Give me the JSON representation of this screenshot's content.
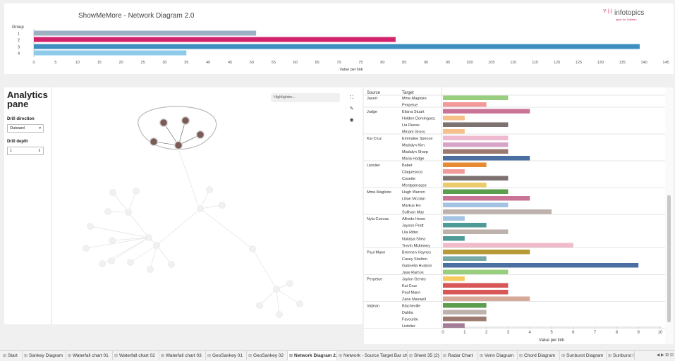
{
  "title": "ShowMeMore - Network Diagram 2.0",
  "logo": {
    "name": "infotopics",
    "tagline": "apps for Tableau",
    "mark": "Y·|·|"
  },
  "top_chart": {
    "chart_data": {
      "type": "bar",
      "orientation": "horizontal",
      "legend_title": "Group",
      "categories": [
        "1",
        "2",
        "3",
        "4"
      ],
      "values": [
        51,
        83,
        139,
        35
      ],
      "colors": [
        "#9dafc3",
        "#d3226c",
        "#3d8fc0",
        "#8ecbea"
      ],
      "xlabel": "Value per link",
      "xlim": [
        0,
        145
      ],
      "xticks": [
        0,
        5,
        10,
        15,
        20,
        25,
        30,
        35,
        40,
        45,
        50,
        55,
        60,
        65,
        70,
        75,
        80,
        85,
        90,
        95,
        100,
        105,
        110,
        115,
        120,
        125,
        130,
        135,
        140,
        145
      ]
    }
  },
  "analytics": {
    "title": "Analytics pane",
    "drill_direction_label": "Drill direction",
    "drill_direction_value": "Outward",
    "drill_depth_label": "Drill depth",
    "drill_depth_value": "1"
  },
  "network": {
    "highlighter_placeholder": "Highlighter...",
    "tools": [
      "fit-screen-icon",
      "pin-icon",
      "eye-icon"
    ]
  },
  "source_target_chart": {
    "chart_data": {
      "type": "bar",
      "orientation": "horizontal",
      "column_headers": [
        "Source",
        "Target"
      ],
      "xlabel": "Value per link",
      "xlim": [
        0,
        10
      ],
      "xticks": [
        0,
        1,
        2,
        3,
        4,
        5,
        6,
        7,
        8,
        9,
        10
      ],
      "groups": [
        {
          "source": "Javert",
          "rows": [
            {
              "target": "Mme.Magloire",
              "value": 3,
              "color": "#98cf7e"
            },
            {
              "target": "Perpetue",
              "value": 2,
              "color": "#f29a9a"
            }
          ]
        },
        {
          "source": "Judge",
          "rows": [
            {
              "target": "Eliana Stuart",
              "value": 4,
              "color": "#c97396"
            },
            {
              "target": "Holden Dominguez",
              "value": 1,
              "color": "#f7c08a"
            },
            {
              "target": "Lia Reese",
              "value": 3,
              "color": "#7d7270"
            },
            {
              "target": "Miriam Gross",
              "value": 1,
              "color": "#f7c08a"
            }
          ]
        },
        {
          "source": "Kai Cruz",
          "rows": [
            {
              "target": "Emmalee Spence",
              "value": 3,
              "color": "#efb9cf"
            },
            {
              "target": "Madalyn Kim",
              "value": 3,
              "color": "#d8a3c8"
            },
            {
              "target": "Madalyn Sharp",
              "value": 3,
              "color": "#9c7a6f"
            },
            {
              "target": "Maria Hodge",
              "value": 4,
              "color": "#4c6fa1"
            }
          ]
        },
        {
          "source": "Listolier",
          "rows": [
            {
              "target": "Babet",
              "value": 2,
              "color": "#e78b32"
            },
            {
              "target": "Claquesous",
              "value": 1,
              "color": "#f29a9a"
            },
            {
              "target": "Cosette",
              "value": 3,
              "color": "#7d7270"
            },
            {
              "target": "Montparnasse",
              "value": 2,
              "color": "#eccb6a"
            }
          ]
        },
        {
          "source": "Mme.Magloire",
          "rows": [
            {
              "target": "Hugh Warren",
              "value": 3,
              "color": "#5a9e4e"
            },
            {
              "target": "Lilian Mcclain",
              "value": 4,
              "color": "#c97396"
            },
            {
              "target": "Markus Ho",
              "value": 3,
              "color": "#a4c3e2"
            },
            {
              "target": "Sullivan May",
              "value": 5,
              "color": "#bcb1ab"
            }
          ]
        },
        {
          "source": "Nyla Cuevas",
          "rows": [
            {
              "target": "Alfredo Howe",
              "value": 1,
              "color": "#a4c3e2"
            },
            {
              "target": "Jayson Pratt",
              "value": 2,
              "color": "#4d9a96"
            },
            {
              "target": "Lila Ritter",
              "value": 3,
              "color": "#bcb1ab"
            },
            {
              "target": "Nataiya Shea",
              "value": 1,
              "color": "#4d9a96"
            },
            {
              "target": "Trevin Mckinney",
              "value": 6,
              "color": "#f0bccb"
            }
          ]
        },
        {
          "source": "Paul Mann",
          "rows": [
            {
              "target": "Brennen Haynes",
              "value": 4,
              "color": "#b69a35"
            },
            {
              "target": "Casey Shelton",
              "value": 2,
              "color": "#78aaa8"
            },
            {
              "target": "Gabriella Hudson",
              "value": 9,
              "color": "#4c6fa1"
            },
            {
              "target": "Jase Ramos",
              "value": 3,
              "color": "#98cf7e"
            }
          ]
        },
        {
          "source": "Perpetue",
          "rows": [
            {
              "target": "Jaylon Gentry",
              "value": 1,
              "color": "#f7c95f"
            },
            {
              "target": "Kai Cruz",
              "value": 3,
              "color": "#d85656"
            },
            {
              "target": "Paul Mann",
              "value": 3,
              "color": "#d85656"
            },
            {
              "target": "Zane Maxwell",
              "value": 4,
              "color": "#d6a898"
            }
          ]
        },
        {
          "source": "Valjean",
          "rows": [
            {
              "target": "Blacheville",
              "value": 2,
              "color": "#5a9e4e"
            },
            {
              "target": "Dahlia",
              "value": 2,
              "color": "#bcb1ab"
            },
            {
              "target": "Favourite",
              "value": 2,
              "color": "#9c7a6f"
            },
            {
              "target": "Listolier",
              "value": 1,
              "color": "#a47b96"
            }
          ]
        }
      ]
    }
  },
  "tabs": [
    {
      "label": "Start",
      "active": false
    },
    {
      "label": "Sankey Diagram",
      "active": false
    },
    {
      "label": "Waterfall chart 01",
      "active": false
    },
    {
      "label": "Waterfall chart 02",
      "active": false
    },
    {
      "label": "Waterfall chart 03",
      "active": false
    },
    {
      "label": "GeoSankey 01",
      "active": false
    },
    {
      "label": "GeoSankey 02",
      "active": false
    },
    {
      "label": "Network Diagram 2.0",
      "active": true
    },
    {
      "label": "Network - Source Target Bar cha...",
      "active": false
    },
    {
      "label": "Sheet 35 (2)",
      "active": false
    },
    {
      "label": "Radar Chart",
      "active": false
    },
    {
      "label": "Venn Diagram",
      "active": false
    },
    {
      "label": "Chord Diagram",
      "active": false
    },
    {
      "label": "Sunburst Diagram",
      "active": false
    },
    {
      "label": "Sunburst l",
      "active": false
    }
  ],
  "tab_scroll": "◀ ▶ ⊞ ⊟"
}
